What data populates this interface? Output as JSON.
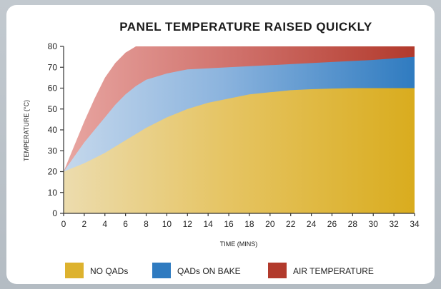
{
  "chart_data": {
    "type": "area",
    "title": "PANEL TEMPERATURE RAISED QUICKLY",
    "xlabel": "TIME (MINS)",
    "ylabel": "TEMPERATURE (°C)",
    "xlim": [
      0,
      34
    ],
    "ylim": [
      0,
      80
    ],
    "x_ticks": [
      0,
      2,
      4,
      6,
      8,
      10,
      12,
      14,
      16,
      18,
      20,
      22,
      24,
      26,
      28,
      30,
      32,
      34
    ],
    "y_ticks": [
      0,
      10,
      20,
      30,
      40,
      50,
      60,
      70,
      80
    ],
    "grid": false,
    "legend_position": "bottom",
    "series": [
      {
        "name": "AIR TEMPERATURE",
        "color": "#b23a2c",
        "points": [
          [
            0,
            20
          ],
          [
            1,
            32
          ],
          [
            2,
            44
          ],
          [
            3,
            55
          ],
          [
            4,
            65
          ],
          [
            5,
            72
          ],
          [
            6,
            77
          ],
          [
            7,
            80
          ],
          [
            8,
            80
          ],
          [
            12,
            80
          ],
          [
            20,
            80
          ],
          [
            28,
            80
          ],
          [
            34,
            80
          ]
        ]
      },
      {
        "name": "QADs ON BAKE",
        "color": "#2f7bc0",
        "points": [
          [
            0,
            20
          ],
          [
            1,
            27
          ],
          [
            2,
            34
          ],
          [
            3,
            40
          ],
          [
            4,
            46
          ],
          [
            5,
            52
          ],
          [
            6,
            57
          ],
          [
            7,
            61
          ],
          [
            8,
            64
          ],
          [
            10,
            67
          ],
          [
            12,
            69
          ],
          [
            14,
            69.5
          ],
          [
            18,
            70.5
          ],
          [
            22,
            71.5
          ],
          [
            26,
            72.5
          ],
          [
            30,
            73.5
          ],
          [
            34,
            75
          ]
        ]
      },
      {
        "name": "NO QADs",
        "color": "#ddb22e",
        "points": [
          [
            0,
            20
          ],
          [
            2,
            24
          ],
          [
            4,
            29
          ],
          [
            6,
            35
          ],
          [
            8,
            41
          ],
          [
            10,
            46
          ],
          [
            12,
            50
          ],
          [
            14,
            53
          ],
          [
            16,
            55
          ],
          [
            18,
            57
          ],
          [
            20,
            58
          ],
          [
            22,
            59
          ],
          [
            24,
            59.5
          ],
          [
            26,
            59.8
          ],
          [
            28,
            60
          ],
          [
            30,
            60
          ],
          [
            32,
            60
          ],
          [
            34,
            60
          ]
        ]
      }
    ]
  },
  "legend": {
    "items": [
      {
        "label": "NO QADs",
        "color": "#ddb22e"
      },
      {
        "label": "QADs ON BAKE",
        "color": "#2f7bc0"
      },
      {
        "label": "AIR TEMPERATURE",
        "color": "#b23a2c"
      }
    ]
  }
}
